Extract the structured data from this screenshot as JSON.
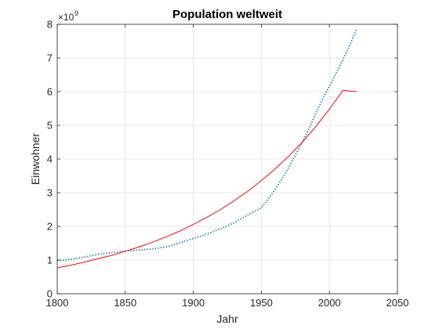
{
  "chart_data": {
    "type": "line",
    "title": "Population weltweit",
    "xlabel": "Jahr",
    "ylabel": "Einwohner",
    "xlim": [
      1800,
      2050
    ],
    "ylim": [
      0,
      8
    ],
    "y_scale_multiplier": {
      "base": "×10",
      "exponent": "9"
    },
    "x_ticks": [
      "1800",
      "1850",
      "1900",
      "1950",
      "2000",
      "2050"
    ],
    "y_ticks": [
      "0",
      "1",
      "2",
      "3",
      "4",
      "5",
      "6",
      "7",
      "8"
    ],
    "grid": true,
    "box": true,
    "series": [
      {
        "style": "dotted",
        "color": "#0072BD",
        "x": [
          1800,
          1810,
          1820,
          1830,
          1840,
          1850,
          1860,
          1870,
          1880,
          1890,
          1900,
          1910,
          1920,
          1930,
          1940,
          1950,
          1955,
          1960,
          1965,
          1970,
          1975,
          1980,
          1985,
          1990,
          1995,
          2000,
          2005,
          2010,
          2015,
          2020
        ],
        "y": [
          0.98,
          1.02,
          1.09,
          1.17,
          1.22,
          1.27,
          1.3,
          1.33,
          1.39,
          1.51,
          1.64,
          1.77,
          1.93,
          2.11,
          2.34,
          2.55,
          2.81,
          3.09,
          3.4,
          3.74,
          4.12,
          4.49,
          4.9,
          5.36,
          5.78,
          6.16,
          6.55,
          6.96,
          7.38,
          7.86
        ]
      },
      {
        "style": "solid",
        "color": "#FF0000",
        "x": [
          1800,
          1810,
          1820,
          1830,
          1840,
          1850,
          1860,
          1870,
          1880,
          1890,
          1900,
          1910,
          1920,
          1930,
          1940,
          1950,
          1960,
          1970,
          1980,
          1990,
          2000,
          2010,
          2020
        ],
        "y": [
          0.77,
          0.85,
          0.94,
          1.04,
          1.14,
          1.26,
          1.39,
          1.53,
          1.69,
          1.86,
          2.06,
          2.27,
          2.5,
          2.76,
          3.04,
          3.36,
          3.7,
          4.08,
          4.5,
          4.96,
          5.48,
          6.04,
          6.0
        ]
      }
    ]
  }
}
